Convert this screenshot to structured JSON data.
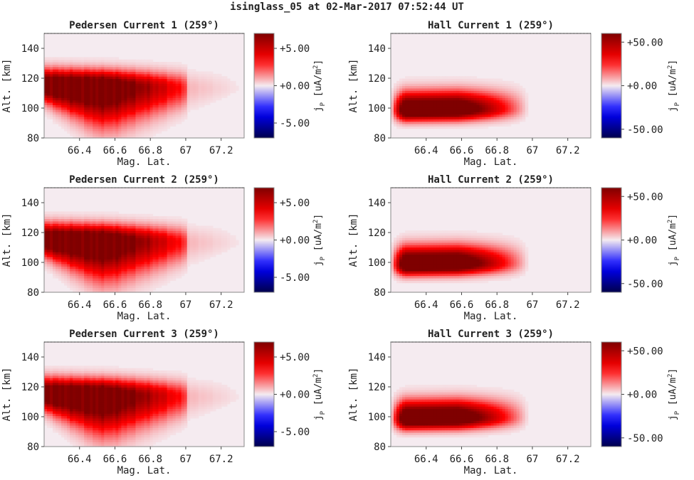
{
  "figure": {
    "title": "isinglass_05 at 02-Mar-2017 07:52:44 UT"
  },
  "chart_data": [
    {
      "type": "heatmap",
      "title": "Pedersen Current 1 (259°)",
      "xlabel": "Mag. Lat.",
      "ylabel": "Alt. [km]",
      "xlim": [
        66.2,
        67.33
      ],
      "ylim": [
        80,
        150
      ],
      "xticks": [
        66.4,
        66.6,
        66.8,
        67,
        67.2
      ],
      "xtick_labels": [
        "66.4",
        "66.6",
        "66.8",
        "67",
        "67.2"
      ],
      "yticks": [
        80,
        100,
        120,
        140
      ],
      "ytick_labels": [
        "80",
        "100",
        "120",
        "140"
      ],
      "colorbar": {
        "label": "j_P [uA/m²]",
        "label_main": "j",
        "label_sub": "P",
        "label_units": " [uA/m",
        "label_sup": "2",
        "label_close": "]",
        "vmin": -7,
        "vmax": 7,
        "ticks": [
          5,
          0,
          -5
        ],
        "tick_labels": [
          "+5.00",
          "+0.00",
          "-5.00"
        ],
        "colormap": "seismic"
      },
      "peak": {
        "lat": 66.45,
        "alt": 115,
        "value": 7
      },
      "fade_lat": 67.02
    },
    {
      "type": "heatmap",
      "title": "Hall Current 1 (259°)",
      "xlabel": "Mag. Lat.",
      "ylabel": "Alt. [km]",
      "xlim": [
        66.2,
        67.33
      ],
      "ylim": [
        80,
        150
      ],
      "xticks": [
        66.4,
        66.6,
        66.8,
        67,
        67.2
      ],
      "xtick_labels": [
        "66.4",
        "66.6",
        "66.8",
        "67",
        "67.2"
      ],
      "yticks": [
        80,
        100,
        120,
        140
      ],
      "ytick_labels": [
        "80",
        "100",
        "120",
        "140"
      ],
      "colorbar": {
        "label": "j_P [uA/m²]",
        "label_main": "j",
        "label_sub": "P",
        "label_units": " [uA/m",
        "label_sup": "2",
        "label_close": "]",
        "vmin": -60,
        "vmax": 60,
        "ticks": [
          50,
          0,
          -50
        ],
        "tick_labels": [
          "+50.00",
          "+0.00",
          "-50.00"
        ],
        "colormap": "seismic"
      },
      "peak": {
        "lat": 66.5,
        "alt": 99,
        "value": 60
      },
      "fade_lat": 67.0
    },
    {
      "type": "heatmap",
      "title": "Pedersen Current 2 (259°)",
      "xlabel": "Mag. Lat.",
      "ylabel": "Alt. [km]",
      "xlim": [
        66.2,
        67.33
      ],
      "ylim": [
        80,
        150
      ],
      "xticks": [
        66.4,
        66.6,
        66.8,
        67,
        67.2
      ],
      "xtick_labels": [
        "66.4",
        "66.6",
        "66.8",
        "67",
        "67.2"
      ],
      "yticks": [
        80,
        100,
        120,
        140
      ],
      "ytick_labels": [
        "80",
        "100",
        "120",
        "140"
      ],
      "colorbar": {
        "label": "j_P [uA/m²]",
        "label_main": "j",
        "label_sub": "P",
        "label_units": " [uA/m",
        "label_sup": "2",
        "label_close": "]",
        "vmin": -7,
        "vmax": 7,
        "ticks": [
          5,
          0,
          -5
        ],
        "tick_labels": [
          "+5.00",
          "+0.00",
          "-5.00"
        ],
        "colormap": "seismic"
      },
      "peak": {
        "lat": 66.45,
        "alt": 115,
        "value": 7
      },
      "fade_lat": 67.02
    },
    {
      "type": "heatmap",
      "title": "Hall Current 2 (259°)",
      "xlabel": "Mag. Lat.",
      "ylabel": "Alt. [km]",
      "xlim": [
        66.2,
        67.33
      ],
      "ylim": [
        80,
        150
      ],
      "xticks": [
        66.4,
        66.6,
        66.8,
        67,
        67.2
      ],
      "xtick_labels": [
        "66.4",
        "66.6",
        "66.8",
        "67",
        "67.2"
      ],
      "yticks": [
        80,
        100,
        120,
        140
      ],
      "ytick_labels": [
        "80",
        "100",
        "120",
        "140"
      ],
      "colorbar": {
        "label": "j_P [uA/m²]",
        "label_main": "j",
        "label_sub": "P",
        "label_units": " [uA/m",
        "label_sup": "2",
        "label_close": "]",
        "vmin": -60,
        "vmax": 60,
        "ticks": [
          50,
          0,
          -50
        ],
        "tick_labels": [
          "+50.00",
          "+0.00",
          "-50.00"
        ],
        "colormap": "seismic"
      },
      "peak": {
        "lat": 66.5,
        "alt": 99,
        "value": 60
      },
      "fade_lat": 67.0
    },
    {
      "type": "heatmap",
      "title": "Pedersen Current 3 (259°)",
      "xlabel": "Mag. Lat.",
      "ylabel": "Alt. [km]",
      "xlim": [
        66.2,
        67.33
      ],
      "ylim": [
        80,
        150
      ],
      "xticks": [
        66.4,
        66.6,
        66.8,
        67,
        67.2
      ],
      "xtick_labels": [
        "66.4",
        "66.6",
        "66.8",
        "67",
        "67.2"
      ],
      "yticks": [
        80,
        100,
        120,
        140
      ],
      "ytick_labels": [
        "80",
        "100",
        "120",
        "140"
      ],
      "colorbar": {
        "label": "j_P [uA/m²]",
        "label_main": "j",
        "label_sub": "P",
        "label_units": " [uA/m",
        "label_sup": "2",
        "label_close": "]",
        "vmin": -7,
        "vmax": 7,
        "ticks": [
          5,
          0,
          -5
        ],
        "tick_labels": [
          "+5.00",
          "+0.00",
          "-5.00"
        ],
        "colormap": "seismic"
      },
      "peak": {
        "lat": 66.45,
        "alt": 115,
        "value": 7
      },
      "fade_lat": 67.02
    },
    {
      "type": "heatmap",
      "title": "Hall Current 3 (259°)",
      "xlabel": "Mag. Lat.",
      "ylabel": "Alt. [km]",
      "xlim": [
        66.2,
        67.33
      ],
      "ylim": [
        80,
        150
      ],
      "xticks": [
        66.4,
        66.6,
        66.8,
        67,
        67.2
      ],
      "xtick_labels": [
        "66.4",
        "66.6",
        "66.8",
        "67",
        "67.2"
      ],
      "yticks": [
        80,
        100,
        120,
        140
      ],
      "ytick_labels": [
        "80",
        "100",
        "120",
        "140"
      ],
      "colorbar": {
        "label": "j_P [uA/m²]",
        "label_main": "j",
        "label_sub": "P",
        "label_units": " [uA/m",
        "label_sup": "2",
        "label_close": "]",
        "vmin": -60,
        "vmax": 60,
        "ticks": [
          50,
          0,
          -50
        ],
        "tick_labels": [
          "+50.00",
          "+0.00",
          "-50.00"
        ],
        "colormap": "seismic"
      },
      "peak": {
        "lat": 66.5,
        "alt": 99,
        "value": 60
      },
      "fade_lat": 67.0
    }
  ]
}
